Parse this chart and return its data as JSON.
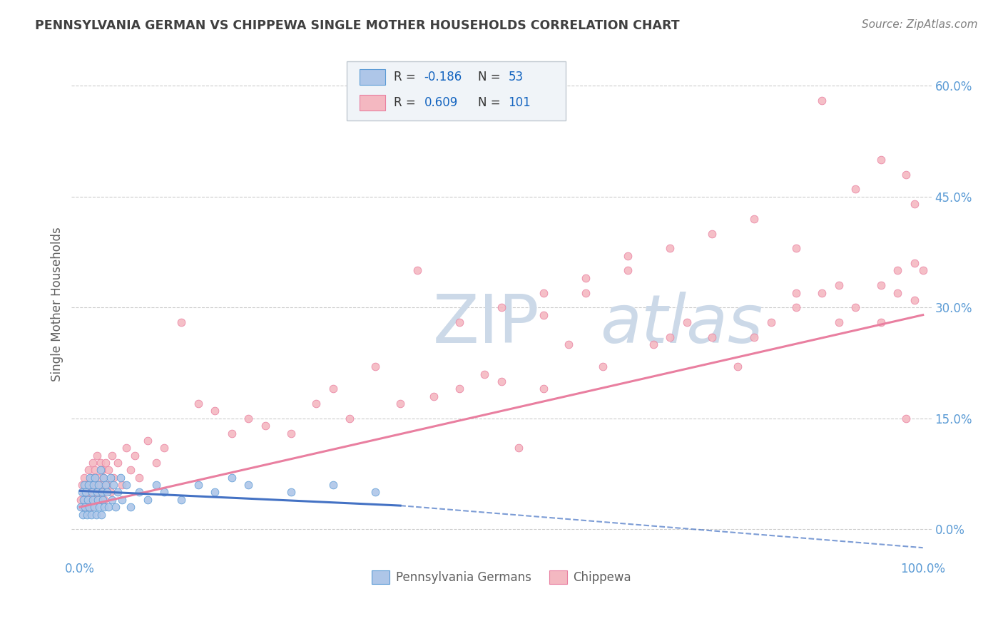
{
  "title": "PENNSYLVANIA GERMAN VS CHIPPEWA SINGLE MOTHER HOUSEHOLDS CORRELATION CHART",
  "source": "Source: ZipAtlas.com",
  "ylabel": "Single Mother Households",
  "xlim": [
    -0.01,
    1.01
  ],
  "ylim": [
    -0.04,
    0.65
  ],
  "xtick_positions": [
    0.0,
    1.0
  ],
  "xtick_labels": [
    "0.0%",
    "100.0%"
  ],
  "ytick_values": [
    0.0,
    0.15,
    0.3,
    0.45,
    0.6
  ],
  "ytick_labels": [
    "0.0%",
    "15.0%",
    "30.0%",
    "45.0%",
    "60.0%"
  ],
  "watermark": "ZIPatlas",
  "blue_scatter": [
    [
      0.001,
      0.03
    ],
    [
      0.002,
      0.05
    ],
    [
      0.003,
      0.02
    ],
    [
      0.004,
      0.04
    ],
    [
      0.005,
      0.06
    ],
    [
      0.006,
      0.03
    ],
    [
      0.007,
      0.05
    ],
    [
      0.008,
      0.02
    ],
    [
      0.009,
      0.04
    ],
    [
      0.01,
      0.06
    ],
    [
      0.011,
      0.03
    ],
    [
      0.012,
      0.07
    ],
    [
      0.013,
      0.02
    ],
    [
      0.014,
      0.05
    ],
    [
      0.015,
      0.04
    ],
    [
      0.016,
      0.06
    ],
    [
      0.017,
      0.03
    ],
    [
      0.018,
      0.07
    ],
    [
      0.019,
      0.02
    ],
    [
      0.02,
      0.05
    ],
    [
      0.021,
      0.04
    ],
    [
      0.022,
      0.06
    ],
    [
      0.023,
      0.03
    ],
    [
      0.024,
      0.08
    ],
    [
      0.025,
      0.02
    ],
    [
      0.026,
      0.05
    ],
    [
      0.027,
      0.04
    ],
    [
      0.028,
      0.07
    ],
    [
      0.029,
      0.03
    ],
    [
      0.03,
      0.06
    ],
    [
      0.032,
      0.05
    ],
    [
      0.034,
      0.03
    ],
    [
      0.036,
      0.07
    ],
    [
      0.038,
      0.04
    ],
    [
      0.04,
      0.06
    ],
    [
      0.042,
      0.03
    ],
    [
      0.045,
      0.05
    ],
    [
      0.048,
      0.07
    ],
    [
      0.05,
      0.04
    ],
    [
      0.055,
      0.06
    ],
    [
      0.06,
      0.03
    ],
    [
      0.07,
      0.05
    ],
    [
      0.08,
      0.04
    ],
    [
      0.09,
      0.06
    ],
    [
      0.1,
      0.05
    ],
    [
      0.12,
      0.04
    ],
    [
      0.14,
      0.06
    ],
    [
      0.16,
      0.05
    ],
    [
      0.18,
      0.07
    ],
    [
      0.2,
      0.06
    ],
    [
      0.25,
      0.05
    ],
    [
      0.3,
      0.06
    ],
    [
      0.35,
      0.05
    ]
  ],
  "pink_scatter": [
    [
      0.001,
      0.04
    ],
    [
      0.002,
      0.06
    ],
    [
      0.003,
      0.03
    ],
    [
      0.004,
      0.05
    ],
    [
      0.005,
      0.07
    ],
    [
      0.006,
      0.04
    ],
    [
      0.007,
      0.06
    ],
    [
      0.008,
      0.03
    ],
    [
      0.009,
      0.05
    ],
    [
      0.01,
      0.08
    ],
    [
      0.011,
      0.04
    ],
    [
      0.012,
      0.06
    ],
    [
      0.013,
      0.03
    ],
    [
      0.014,
      0.07
    ],
    [
      0.015,
      0.09
    ],
    [
      0.016,
      0.05
    ],
    [
      0.017,
      0.04
    ],
    [
      0.018,
      0.08
    ],
    [
      0.019,
      0.06
    ],
    [
      0.02,
      0.1
    ],
    [
      0.021,
      0.05
    ],
    [
      0.022,
      0.07
    ],
    [
      0.023,
      0.04
    ],
    [
      0.024,
      0.09
    ],
    [
      0.025,
      0.06
    ],
    [
      0.026,
      0.08
    ],
    [
      0.027,
      0.05
    ],
    [
      0.028,
      0.07
    ],
    [
      0.029,
      0.04
    ],
    [
      0.03,
      0.09
    ],
    [
      0.032,
      0.06
    ],
    [
      0.034,
      0.08
    ],
    [
      0.036,
      0.05
    ],
    [
      0.038,
      0.1
    ],
    [
      0.04,
      0.07
    ],
    [
      0.045,
      0.09
    ],
    [
      0.05,
      0.06
    ],
    [
      0.055,
      0.11
    ],
    [
      0.06,
      0.08
    ],
    [
      0.065,
      0.1
    ],
    [
      0.07,
      0.07
    ],
    [
      0.08,
      0.12
    ],
    [
      0.09,
      0.09
    ],
    [
      0.1,
      0.11
    ],
    [
      0.12,
      0.28
    ],
    [
      0.14,
      0.17
    ],
    [
      0.16,
      0.16
    ],
    [
      0.18,
      0.13
    ],
    [
      0.2,
      0.15
    ],
    [
      0.22,
      0.14
    ],
    [
      0.25,
      0.13
    ],
    [
      0.28,
      0.17
    ],
    [
      0.3,
      0.19
    ],
    [
      0.32,
      0.15
    ],
    [
      0.35,
      0.22
    ],
    [
      0.38,
      0.17
    ],
    [
      0.4,
      0.35
    ],
    [
      0.42,
      0.18
    ],
    [
      0.45,
      0.19
    ],
    [
      0.48,
      0.21
    ],
    [
      0.5,
      0.2
    ],
    [
      0.52,
      0.11
    ],
    [
      0.55,
      0.29
    ],
    [
      0.55,
      0.19
    ],
    [
      0.58,
      0.25
    ],
    [
      0.6,
      0.32
    ],
    [
      0.62,
      0.22
    ],
    [
      0.65,
      0.35
    ],
    [
      0.68,
      0.25
    ],
    [
      0.7,
      0.26
    ],
    [
      0.72,
      0.28
    ],
    [
      0.75,
      0.26
    ],
    [
      0.78,
      0.22
    ],
    [
      0.8,
      0.26
    ],
    [
      0.82,
      0.28
    ],
    [
      0.85,
      0.3
    ],
    [
      0.88,
      0.32
    ],
    [
      0.9,
      0.28
    ],
    [
      0.92,
      0.3
    ],
    [
      0.95,
      0.28
    ],
    [
      0.97,
      0.32
    ],
    [
      0.98,
      0.15
    ],
    [
      0.99,
      0.31
    ],
    [
      0.85,
      0.38
    ],
    [
      0.88,
      0.58
    ],
    [
      0.92,
      0.46
    ],
    [
      0.95,
      0.5
    ],
    [
      0.97,
      0.35
    ],
    [
      0.98,
      0.48
    ],
    [
      0.99,
      0.36
    ],
    [
      1.0,
      0.35
    ],
    [
      0.8,
      0.42
    ],
    [
      0.75,
      0.4
    ],
    [
      0.7,
      0.38
    ],
    [
      0.65,
      0.37
    ],
    [
      0.6,
      0.34
    ],
    [
      0.55,
      0.32
    ],
    [
      0.5,
      0.3
    ],
    [
      0.45,
      0.28
    ],
    [
      0.9,
      0.33
    ],
    [
      0.85,
      0.32
    ],
    [
      0.95,
      0.33
    ],
    [
      0.99,
      0.44
    ]
  ],
  "blue_line_solid": {
    "x0": 0.0,
    "x1": 0.38,
    "y0": 0.052,
    "y1": 0.032
  },
  "blue_line_dashed": {
    "x0": 0.38,
    "x1": 1.0,
    "y0": 0.032,
    "y1": -0.025
  },
  "pink_line": {
    "x0": 0.0,
    "x1": 1.0,
    "y0": 0.03,
    "y1": 0.29
  },
  "blue_line_color": "#4472c4",
  "pink_line_color": "#e97fa0",
  "blue_scatter_color": "#aec6e8",
  "pink_scatter_color": "#f4b8c1",
  "blue_scatter_edge": "#5b9bd5",
  "pink_scatter_edge": "#e97fa0",
  "watermark_color": "#ccd9e8",
  "background_color": "#ffffff",
  "grid_color": "#cccccc",
  "title_color": "#404040",
  "source_color": "#808080",
  "axis_label_color": "#606060",
  "tick_color": "#5b9bd5",
  "legend_value_color": "#1565c0"
}
